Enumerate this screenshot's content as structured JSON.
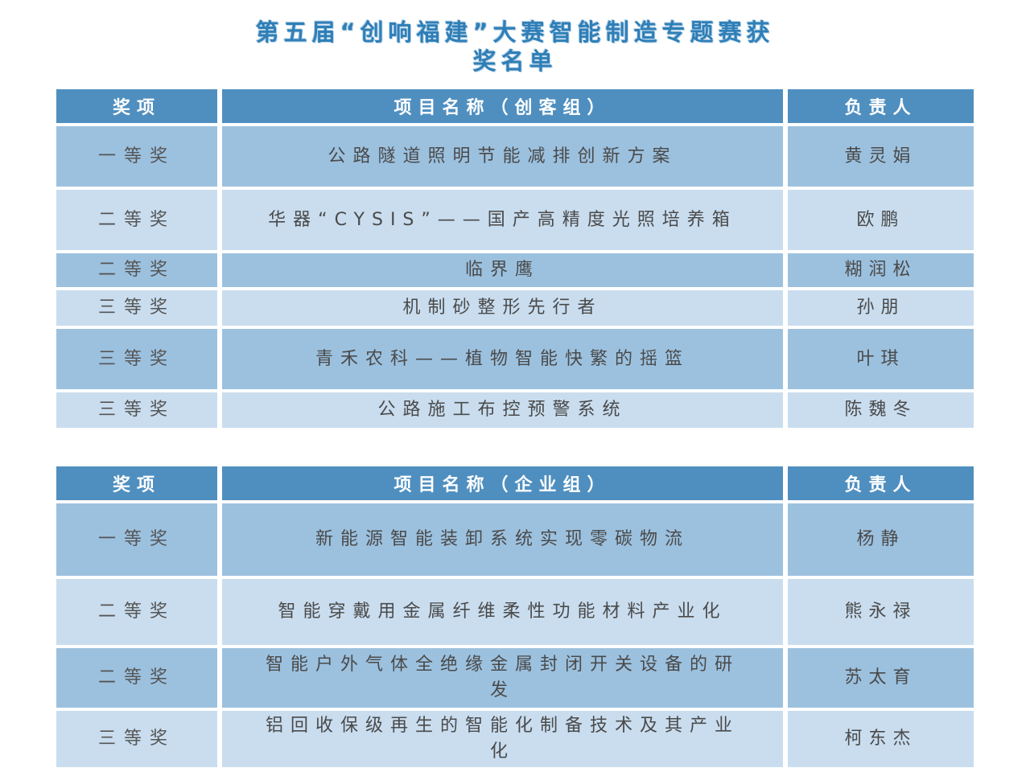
{
  "title": {
    "line1": "第五届“创响福建”大赛智能制造专题赛获",
    "line2": "奖名单"
  },
  "table_maker": {
    "headers": [
      "奖项",
      "项目名称（创客组）",
      "负责人"
    ],
    "rows": [
      {
        "award": "一等奖",
        "project": "公路隧道照明节能减排创新方案",
        "person": "黄灵娟"
      },
      {
        "award": "二等奖",
        "project": "华器“CYSIS”——国产高精度光照培养箱",
        "person": "欧鹏"
      },
      {
        "award": "二等奖",
        "project": "临界鹰",
        "person": "糊润松"
      },
      {
        "award": "三等奖",
        "project": "机制砂整形先行者",
        "person": "孙朋"
      },
      {
        "award": "三等奖",
        "project": "青禾农科——植物智能快繁的摇篮",
        "person": "叶琪"
      },
      {
        "award": "三等奖",
        "project": "公路施工布控预警系统",
        "person": "陈魏冬"
      }
    ]
  },
  "table_enterprise": {
    "headers": [
      "奖项",
      "项目名称（企业组）",
      "负责人"
    ],
    "rows": [
      {
        "award": "一等奖",
        "project": "新能源智能装卸系统实现零碳物流",
        "person": "杨静"
      },
      {
        "award": "二等奖",
        "project": "智能穿戴用金属纤维柔性功能材料产业化",
        "person": "熊永禄"
      },
      {
        "award": "二等奖",
        "project": "智能户外气体全绝缘金属封闭开关设备的研发",
        "person": "苏太育"
      },
      {
        "award": "三等奖",
        "project": "铝回收保级再生的智能化制备技术及其产业化",
        "person": "柯东杰"
      }
    ]
  }
}
